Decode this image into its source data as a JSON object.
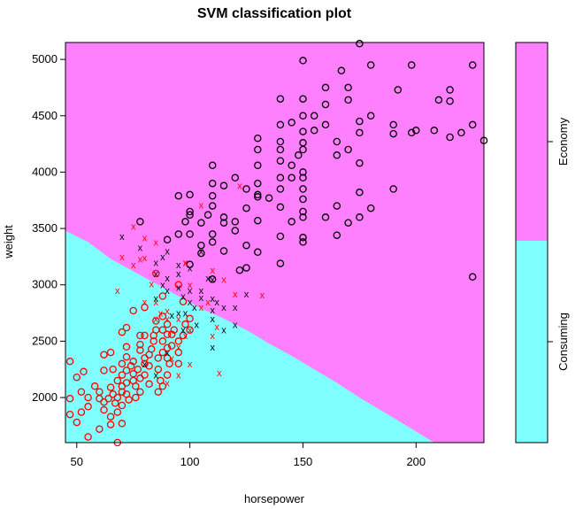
{
  "chart_data": {
    "type": "scatter",
    "title": "SVM classification plot",
    "xlabel": "horsepower",
    "ylabel": "weight",
    "xlim": [
      45,
      230
    ],
    "ylim": [
      1600,
      5150
    ],
    "xticks": [
      "50",
      "100",
      "150",
      "200"
    ],
    "yticks": [
      "2000",
      "2500",
      "3000",
      "3500",
      "4000",
      "4500",
      "5000"
    ],
    "classes": [
      "Consuming",
      "Economy"
    ],
    "class_colors": {
      "Consuming": "#80ffff",
      "Economy": "#ff80ff"
    },
    "decision_boundary": [
      [
        45,
        3480
      ],
      [
        55,
        3380
      ],
      [
        65,
        3230
      ],
      [
        75,
        3120
      ],
      [
        85,
        3010
      ],
      [
        95,
        2900
      ],
      [
        105,
        2790
      ],
      [
        115,
        2700
      ],
      [
        125,
        2600
      ],
      [
        135,
        2480
      ],
      [
        145,
        2370
      ],
      [
        155,
        2250
      ],
      [
        165,
        2130
      ],
      [
        175,
        2000
      ],
      [
        185,
        1880
      ],
      [
        195,
        1760
      ],
      [
        208,
        1600
      ]
    ],
    "markers": {
      "support_vector": "x",
      "data_point": "o"
    },
    "point_colors": {
      "Economy": "#000000",
      "Consuming": "#ff0000"
    },
    "series": [
      {
        "name": "Economy",
        "points": [
          [
            175,
            5140
          ],
          [
            150,
            4990
          ],
          [
            167,
            4900
          ],
          [
            180,
            4950
          ],
          [
            198,
            4950
          ],
          [
            225,
            4950
          ],
          [
            160,
            4750
          ],
          [
            170,
            4750
          ],
          [
            192,
            4730
          ],
          [
            215,
            4730
          ],
          [
            140,
            4650
          ],
          [
            150,
            4650
          ],
          [
            160,
            4600
          ],
          [
            170,
            4640
          ],
          [
            210,
            4640
          ],
          [
            215,
            4630
          ],
          [
            150,
            4500
          ],
          [
            155,
            4500
          ],
          [
            175,
            4450
          ],
          [
            180,
            4500
          ],
          [
            190,
            4420
          ],
          [
            140,
            4420
          ],
          [
            145,
            4440
          ],
          [
            160,
            4420
          ],
          [
            150,
            4360
          ],
          [
            155,
            4370
          ],
          [
            175,
            4350
          ],
          [
            198,
            4350
          ],
          [
            200,
            4370
          ],
          [
            208,
            4370
          ],
          [
            215,
            4310
          ],
          [
            220,
            4350
          ],
          [
            225,
            4420
          ],
          [
            230,
            4280
          ],
          [
            130,
            4300
          ],
          [
            140,
            4270
          ],
          [
            150,
            4260
          ],
          [
            165,
            4270
          ],
          [
            170,
            4200
          ],
          [
            190,
            4340
          ],
          [
            130,
            4200
          ],
          [
            140,
            4200
          ],
          [
            148,
            4150
          ],
          [
            150,
            4200
          ],
          [
            165,
            4150
          ],
          [
            175,
            4080
          ],
          [
            110,
            4060
          ],
          [
            130,
            4060
          ],
          [
            140,
            4100
          ],
          [
            145,
            4060
          ],
          [
            150,
            4000
          ],
          [
            120,
            3950
          ],
          [
            130,
            3900
          ],
          [
            140,
            3950
          ],
          [
            145,
            3950
          ],
          [
            150,
            3950
          ],
          [
            110,
            3900
          ],
          [
            115,
            3880
          ],
          [
            125,
            3850
          ],
          [
            130,
            3800
          ],
          [
            140,
            3850
          ],
          [
            150,
            3850
          ],
          [
            175,
            3820
          ],
          [
            190,
            3850
          ],
          [
            95,
            3790
          ],
          [
            100,
            3800
          ],
          [
            110,
            3790
          ],
          [
            130,
            3780
          ],
          [
            135,
            3770
          ],
          [
            150,
            3760
          ],
          [
            100,
            3650
          ],
          [
            110,
            3700
          ],
          [
            125,
            3680
          ],
          [
            140,
            3690
          ],
          [
            150,
            3650
          ],
          [
            165,
            3700
          ],
          [
            180,
            3680
          ],
          [
            100,
            3620
          ],
          [
            108,
            3620
          ],
          [
            115,
            3600
          ],
          [
            120,
            3560
          ],
          [
            150,
            3600
          ],
          [
            160,
            3600
          ],
          [
            175,
            3600
          ],
          [
            78,
            3560
          ],
          [
            98,
            3560
          ],
          [
            105,
            3550
          ],
          [
            115,
            3550
          ],
          [
            130,
            3570
          ],
          [
            145,
            3560
          ],
          [
            170,
            3550
          ],
          [
            95,
            3450
          ],
          [
            100,
            3450
          ],
          [
            110,
            3450
          ],
          [
            120,
            3480
          ],
          [
            140,
            3430
          ],
          [
            150,
            3420
          ],
          [
            165,
            3440
          ],
          [
            90,
            3400
          ],
          [
            105,
            3350
          ],
          [
            110,
            3380
          ],
          [
            125,
            3350
          ],
          [
            150,
            3380
          ],
          [
            105,
            3280
          ],
          [
            115,
            3300
          ],
          [
            130,
            3290
          ],
          [
            100,
            3180
          ],
          [
            125,
            3150
          ],
          [
            140,
            3190
          ],
          [
            225,
            3070
          ],
          [
            122,
            3130
          ],
          [
            110,
            3050
          ]
        ]
      },
      {
        "name": "Consuming",
        "points": [
          [
            47,
            2320
          ],
          [
            47,
            1990
          ],
          [
            47,
            1850
          ],
          [
            50,
            2180
          ],
          [
            52,
            2050
          ],
          [
            55,
            2000
          ],
          [
            55,
            1920
          ],
          [
            52,
            1870
          ],
          [
            50,
            1780
          ],
          [
            55,
            1650
          ],
          [
            53,
            2230
          ],
          [
            58,
            2100
          ],
          [
            60,
            2050
          ],
          [
            60,
            1990
          ],
          [
            62,
            2240
          ],
          [
            62,
            1960
          ],
          [
            64,
            1990
          ],
          [
            65,
            2090
          ],
          [
            66,
            2030
          ],
          [
            67,
            1950
          ],
          [
            68,
            2000
          ],
          [
            68,
            2150
          ],
          [
            66,
            2250
          ],
          [
            65,
            2400
          ],
          [
            62,
            2380
          ],
          [
            62,
            1890
          ],
          [
            65,
            1830
          ],
          [
            68,
            1870
          ],
          [
            70,
            2300
          ],
          [
            70,
            2200
          ],
          [
            70,
            2100
          ],
          [
            70,
            2050
          ],
          [
            70,
            1930
          ],
          [
            72,
            2450
          ],
          [
            72,
            2360
          ],
          [
            72,
            2240
          ],
          [
            72,
            2130
          ],
          [
            72,
            2030
          ],
          [
            73,
            1980
          ],
          [
            74,
            2280
          ],
          [
            75,
            2210
          ],
          [
            75,
            2150
          ],
          [
            76,
            2100
          ],
          [
            76,
            2000
          ],
          [
            77,
            2250
          ],
          [
            78,
            2170
          ],
          [
            78,
            2050
          ],
          [
            78,
            2470
          ],
          [
            78,
            2550
          ],
          [
            80,
            2300
          ],
          [
            80,
            2200
          ],
          [
            82,
            2120
          ],
          [
            82,
            2380
          ],
          [
            82,
            2280
          ],
          [
            83,
            2430
          ],
          [
            84,
            2500
          ],
          [
            84,
            2550
          ],
          [
            85,
            2600
          ],
          [
            85,
            2680
          ],
          [
            86,
            2350
          ],
          [
            86,
            2250
          ],
          [
            87,
            2150
          ],
          [
            88,
            2400
          ],
          [
            88,
            2500
          ],
          [
            88,
            2600
          ],
          [
            88,
            2720
          ],
          [
            90,
            2650
          ],
          [
            90,
            2560
          ],
          [
            90,
            2440
          ],
          [
            90,
            2350
          ],
          [
            91,
            2300
          ],
          [
            92,
            2460
          ],
          [
            92,
            2560
          ],
          [
            93,
            2600
          ],
          [
            95,
            2500
          ],
          [
            95,
            2400
          ],
          [
            97,
            2550
          ],
          [
            98,
            2650
          ],
          [
            97,
            2850
          ],
          [
            95,
            3000
          ],
          [
            100,
            2600
          ],
          [
            100,
            2700
          ],
          [
            75,
            2770
          ],
          [
            80,
            2800
          ],
          [
            85,
            3100
          ],
          [
            88,
            2900
          ],
          [
            80,
            2550
          ],
          [
            72,
            2620
          ],
          [
            78,
            2420
          ],
          [
            70,
            2580
          ],
          [
            68,
            1600
          ],
          [
            80,
            2350
          ],
          [
            75,
            2320
          ],
          [
            90,
            2200
          ],
          [
            88,
            2100
          ],
          [
            95,
            2300
          ],
          [
            86,
            2050
          ],
          [
            70,
            1770
          ],
          [
            65,
            1760
          ],
          [
            60,
            1720
          ]
        ]
      },
      {
        "name": "Economy",
        "marker": "x",
        "points": [
          [
            70,
            3430
          ],
          [
            78,
            3330
          ],
          [
            85,
            3200
          ],
          [
            85,
            3100
          ],
          [
            88,
            3000
          ],
          [
            90,
            2950
          ],
          [
            90,
            3060
          ],
          [
            95,
            3100
          ],
          [
            95,
            3180
          ],
          [
            95,
            2980
          ],
          [
            97,
            2900
          ],
          [
            98,
            3200
          ],
          [
            100,
            3150
          ],
          [
            100,
            2950
          ],
          [
            100,
            2850
          ],
          [
            102,
            2800
          ],
          [
            105,
            2890
          ],
          [
            105,
            2950
          ],
          [
            108,
            3060
          ],
          [
            110,
            3050
          ],
          [
            110,
            2880
          ],
          [
            110,
            2780
          ],
          [
            112,
            2850
          ],
          [
            115,
            2800
          ],
          [
            120,
            2800
          ],
          [
            125,
            2920
          ],
          [
            105,
            3300
          ],
          [
            110,
            2700
          ],
          [
            90,
            3300
          ],
          [
            88,
            3250
          ],
          [
            85,
            2880
          ],
          [
            92,
            2730
          ],
          [
            98,
            2750
          ],
          [
            103,
            2650
          ],
          [
            95,
            2750
          ],
          [
            90,
            2400
          ],
          [
            80,
            2300
          ],
          [
            85,
            2200
          ],
          [
            110,
            2450
          ],
          [
            115,
            2600
          ],
          [
            120,
            2650
          ],
          [
            97,
            2600
          ]
        ]
      },
      {
        "name": "Consuming",
        "marker": "x",
        "points": [
          [
            75,
            3520
          ],
          [
            80,
            3420
          ],
          [
            85,
            3380
          ],
          [
            80,
            3240
          ],
          [
            78,
            3230
          ],
          [
            70,
            3250
          ],
          [
            75,
            3180
          ],
          [
            83,
            3010
          ],
          [
            68,
            2950
          ],
          [
            80,
            2850
          ],
          [
            85,
            2850
          ],
          [
            87,
            2750
          ],
          [
            90,
            2700
          ],
          [
            95,
            2700
          ],
          [
            100,
            2600
          ],
          [
            98,
            2550
          ],
          [
            95,
            2450
          ],
          [
            92,
            2350
          ],
          [
            100,
            2300
          ],
          [
            95,
            2200
          ],
          [
            90,
            2130
          ],
          [
            110,
            2550
          ],
          [
            112,
            2630
          ],
          [
            108,
            2850
          ],
          [
            120,
            2920
          ],
          [
            132,
            2910
          ],
          [
            122,
            3880
          ],
          [
            105,
            3710
          ],
          [
            98,
            3200
          ],
          [
            100,
            3000
          ],
          [
            105,
            2800
          ],
          [
            85,
            2700
          ],
          [
            90,
            2770
          ],
          [
            113,
            2220
          ],
          [
            115,
            3050
          ],
          [
            110,
            3130
          ]
        ]
      }
    ]
  }
}
